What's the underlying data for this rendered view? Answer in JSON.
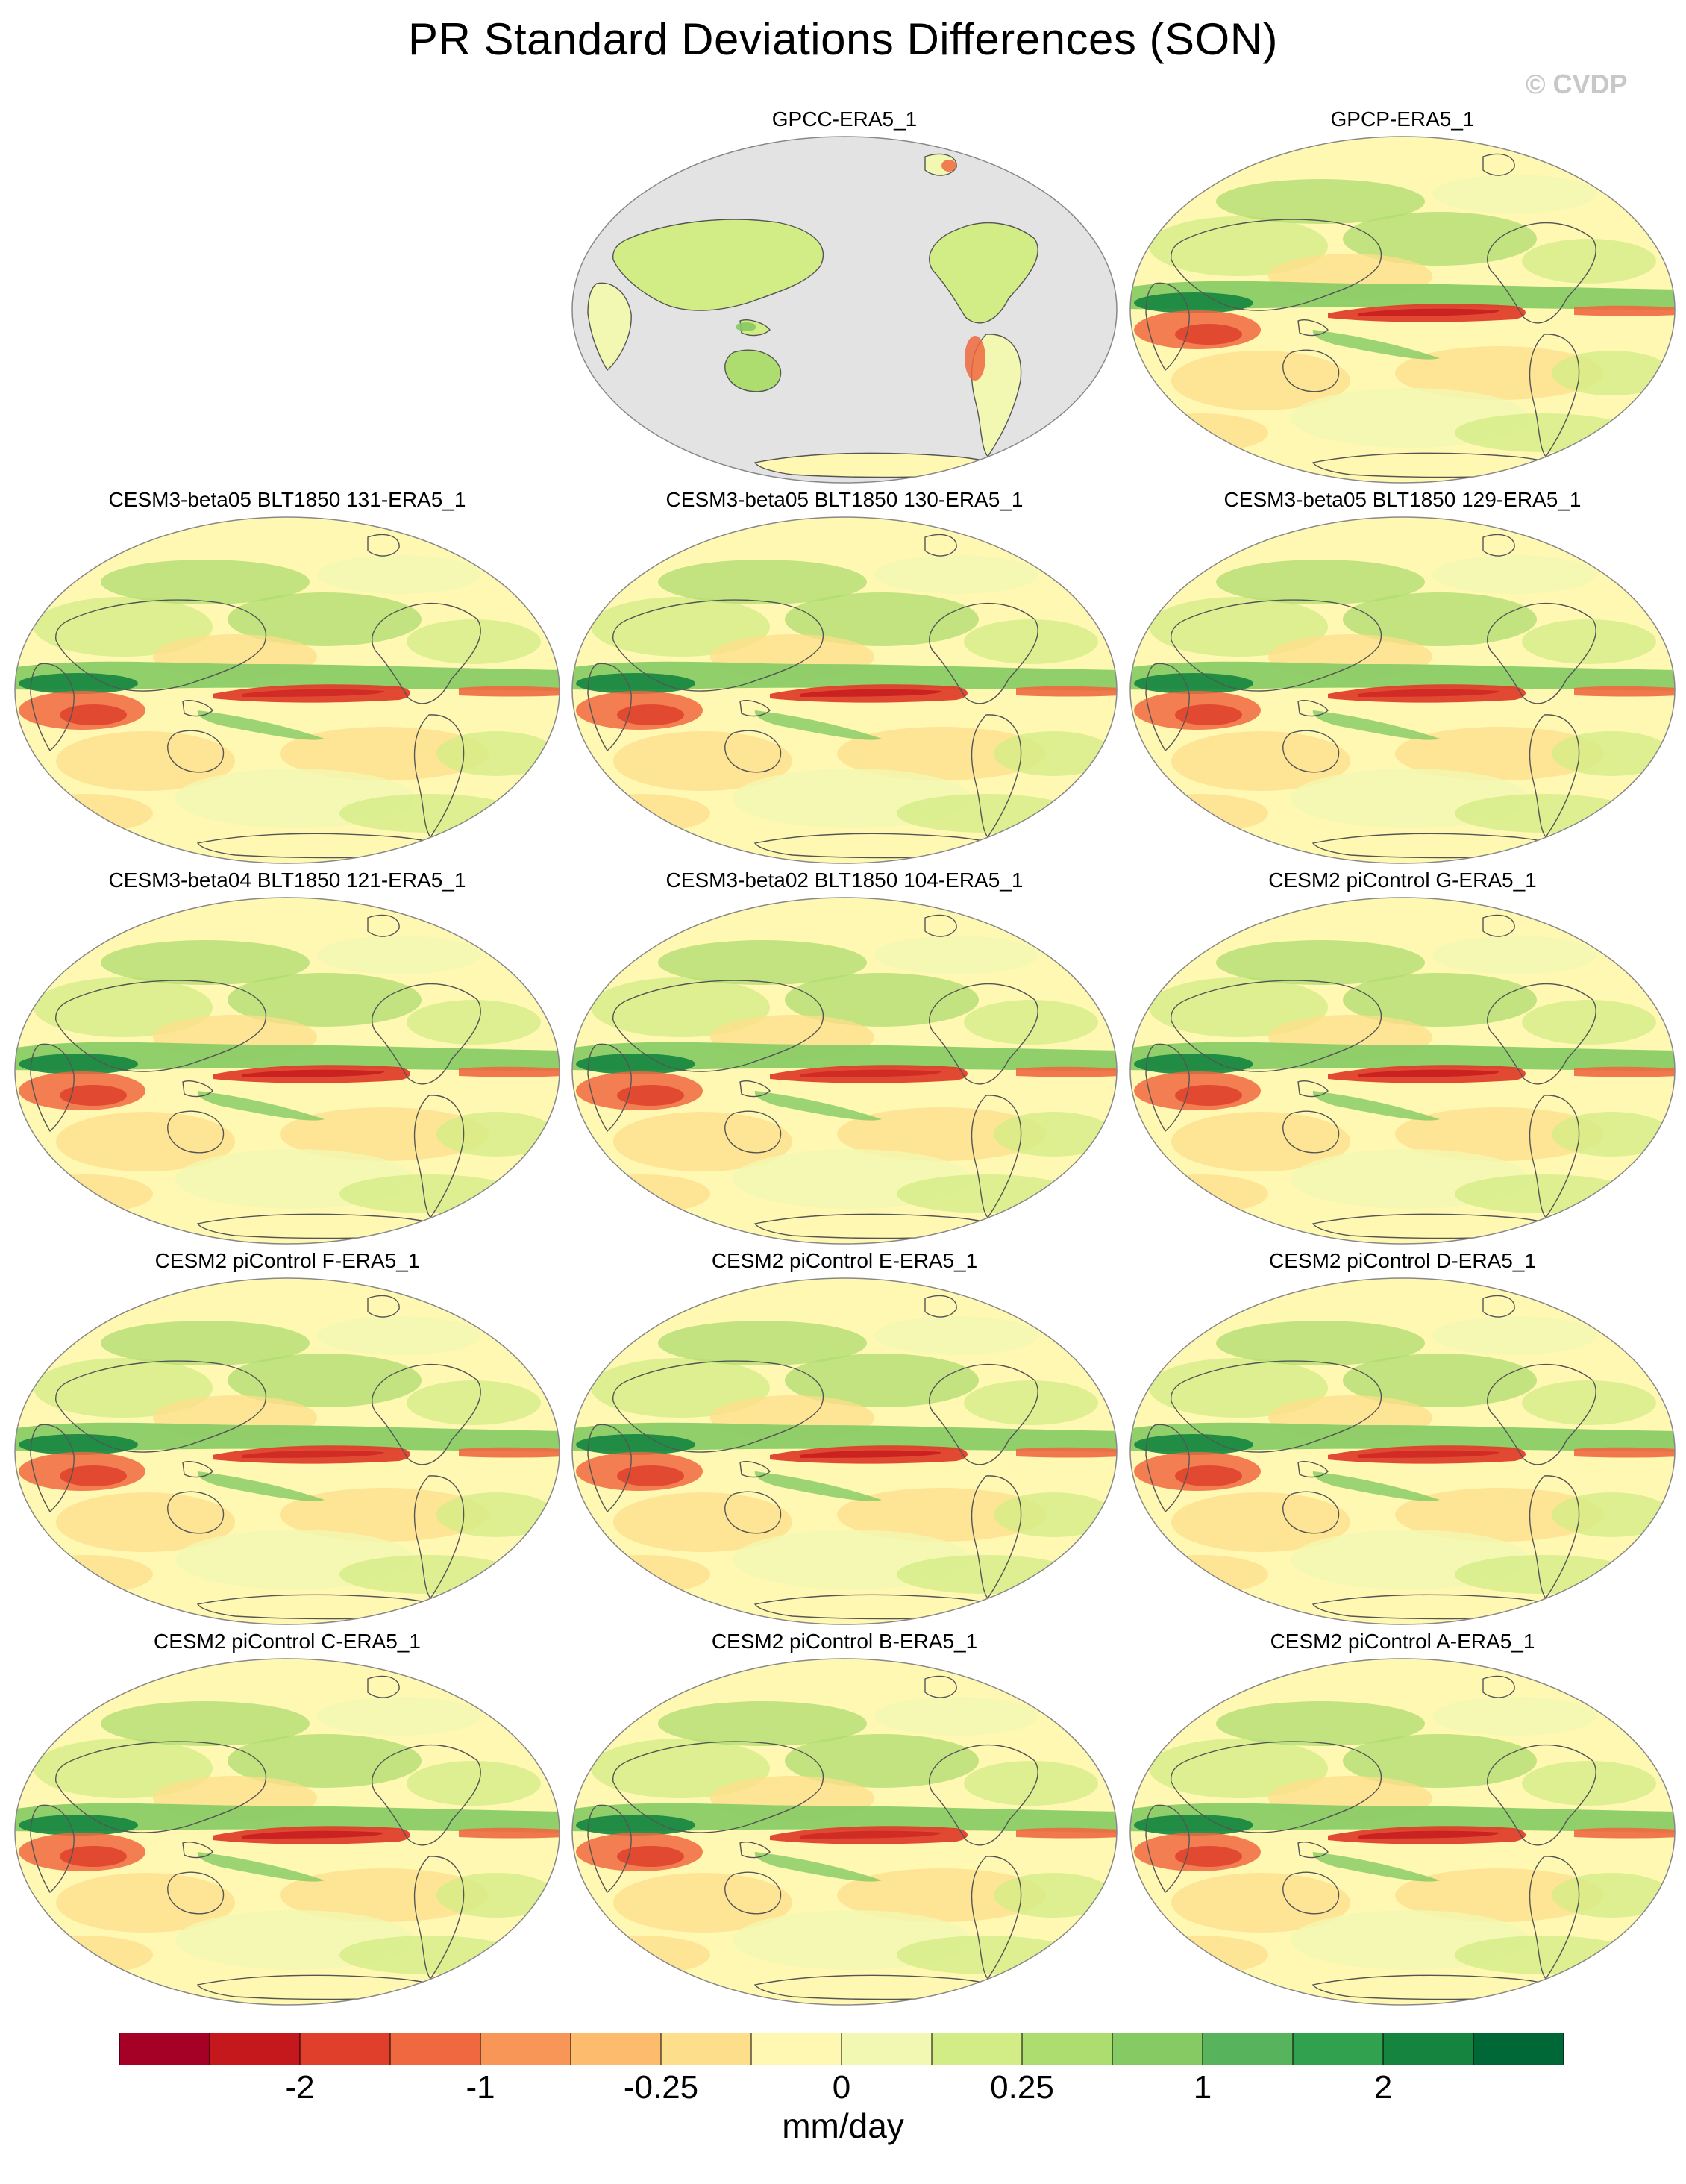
{
  "figure": {
    "title": "PR Standard Deviations Differences (SON)",
    "watermark": "© CVDP",
    "units": "mm/day"
  },
  "panels": [
    {
      "label": "GPCC-ERA5_1",
      "row": 0,
      "col": 1,
      "coverage": "land"
    },
    {
      "label": "GPCP-ERA5_1",
      "row": 0,
      "col": 2,
      "coverage": "global"
    },
    {
      "label": "CESM3-beta05 BLT1850 131-ERA5_1",
      "row": 1,
      "col": 0,
      "coverage": "global"
    },
    {
      "label": "CESM3-beta05 BLT1850 130-ERA5_1",
      "row": 1,
      "col": 1,
      "coverage": "global"
    },
    {
      "label": "CESM3-beta05 BLT1850 129-ERA5_1",
      "row": 1,
      "col": 2,
      "coverage": "global"
    },
    {
      "label": "CESM3-beta04 BLT1850 121-ERA5_1",
      "row": 2,
      "col": 0,
      "coverage": "global"
    },
    {
      "label": "CESM3-beta02 BLT1850 104-ERA5_1",
      "row": 2,
      "col": 1,
      "coverage": "global"
    },
    {
      "label": "CESM2 piControl G-ERA5_1",
      "row": 2,
      "col": 2,
      "coverage": "global"
    },
    {
      "label": "CESM2 piControl F-ERA5_1",
      "row": 3,
      "col": 0,
      "coverage": "global"
    },
    {
      "label": "CESM2 piControl E-ERA5_1",
      "row": 3,
      "col": 1,
      "coverage": "global"
    },
    {
      "label": "CESM2 piControl D-ERA5_1",
      "row": 3,
      "col": 2,
      "coverage": "global"
    },
    {
      "label": "CESM2 piControl C-ERA5_1",
      "row": 4,
      "col": 0,
      "coverage": "global"
    },
    {
      "label": "CESM2 piControl B-ERA5_1",
      "row": 4,
      "col": 1,
      "coverage": "global"
    },
    {
      "label": "CESM2 piControl A-ERA5_1",
      "row": 4,
      "col": 2,
      "coverage": "global"
    }
  ],
  "colorbar": {
    "colors": [
      "#a50026",
      "#c4181d",
      "#df3f2b",
      "#f06840",
      "#f89657",
      "#fcbb6d",
      "#fddf8b",
      "#fff8b2",
      "#f2f8b2",
      "#d2ec86",
      "#addc6f",
      "#85ca63",
      "#58b45c",
      "#31a150",
      "#15843f",
      "#006837"
    ],
    "tick_labels": [
      {
        "text": "-2",
        "after_box": 2
      },
      {
        "text": "-1",
        "after_box": 4
      },
      {
        "text": "-0.25",
        "after_box": 6
      },
      {
        "text": "0",
        "after_box": 8
      },
      {
        "text": "0.25",
        "after_box": 10
      },
      {
        "text": "1",
        "after_box": 12
      },
      {
        "text": "2",
        "after_box": 14
      }
    ]
  },
  "style": {
    "missing_color": "#e3e3e3",
    "coast_color": "#555555",
    "panel_border": "#888888"
  }
}
